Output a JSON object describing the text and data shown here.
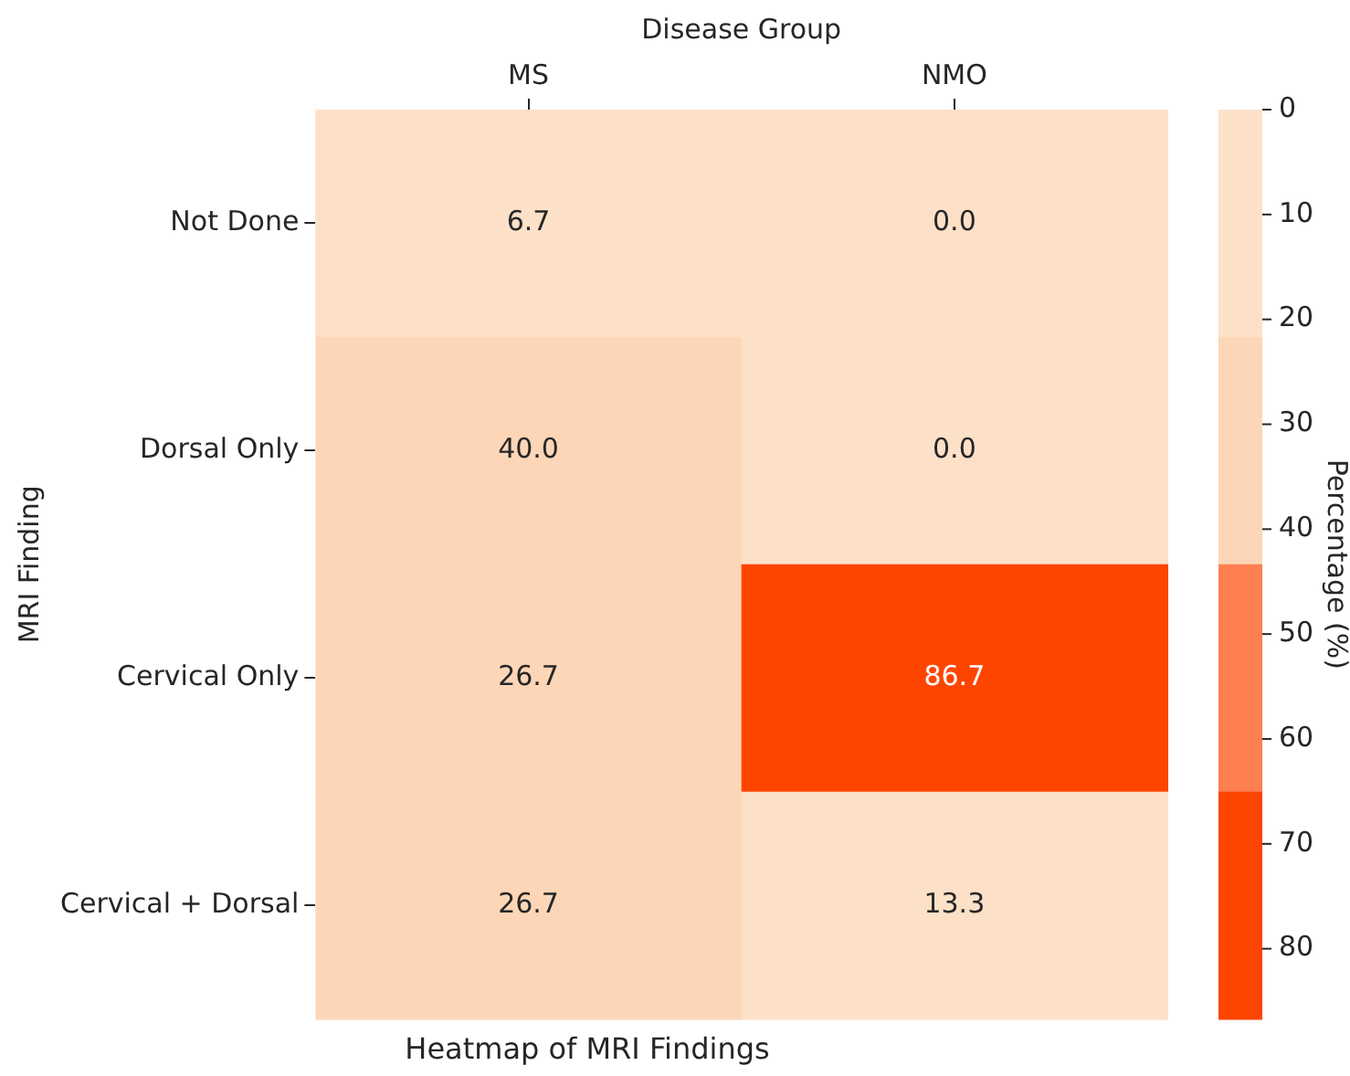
{
  "chart_data": {
    "type": "heatmap",
    "title": "Heatmap of MRI Findings",
    "xlabel": "Disease Group",
    "ylabel": "MRI Finding",
    "clabel": "Percentage (%)",
    "categories": [
      "MS",
      "NMO"
    ],
    "y_categories": [
      "Not Done",
      "Dorsal Only",
      "Cervical Only",
      "Cervical + Dorsal"
    ],
    "cells": [
      [
        6.7,
        0.0
      ],
      [
        40.0,
        0.0
      ],
      [
        26.7,
        86.7
      ],
      [
        26.7,
        13.3
      ]
    ],
    "cell_labels": [
      [
        "6.7",
        "0.0"
      ],
      [
        "40.0",
        "0.0"
      ],
      [
        "26.7",
        "86.7"
      ],
      [
        "26.7",
        "13.3"
      ]
    ],
    "clim": [
      86.7,
      0
    ],
    "cticks": [
      0,
      10,
      20,
      30,
      40,
      50,
      60,
      70,
      80
    ],
    "data_labels": true
  }
}
